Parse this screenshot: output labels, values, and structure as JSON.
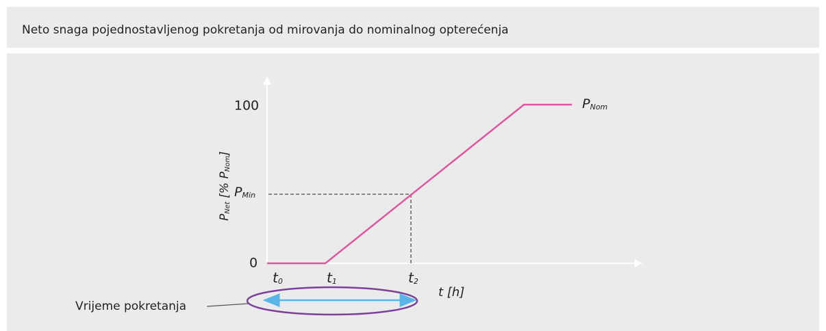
{
  "header": {
    "title": "Neto snaga pojednostavljenog pokretanja od mirovanja do nominalnog opterećenja"
  },
  "diagram": {
    "y_axis": {
      "symbol": "P",
      "sub": "Net",
      "unit_open": " [% P",
      "unit_sub": "Nom",
      "unit_close": "]"
    },
    "y_ticks": [
      "100",
      "0"
    ],
    "p_min": {
      "symbol": "P",
      "sub": "Min"
    },
    "p_nom": {
      "symbol": "P",
      "sub": "Nom"
    },
    "x_ticks": [
      {
        "symbol": "t",
        "sub": "0"
      },
      {
        "symbol": "t",
        "sub": "1"
      },
      {
        "symbol": "t",
        "sub": "2"
      }
    ],
    "x_axis": "t [h]",
    "annotation": "Vrijeme pokretanja"
  }
}
